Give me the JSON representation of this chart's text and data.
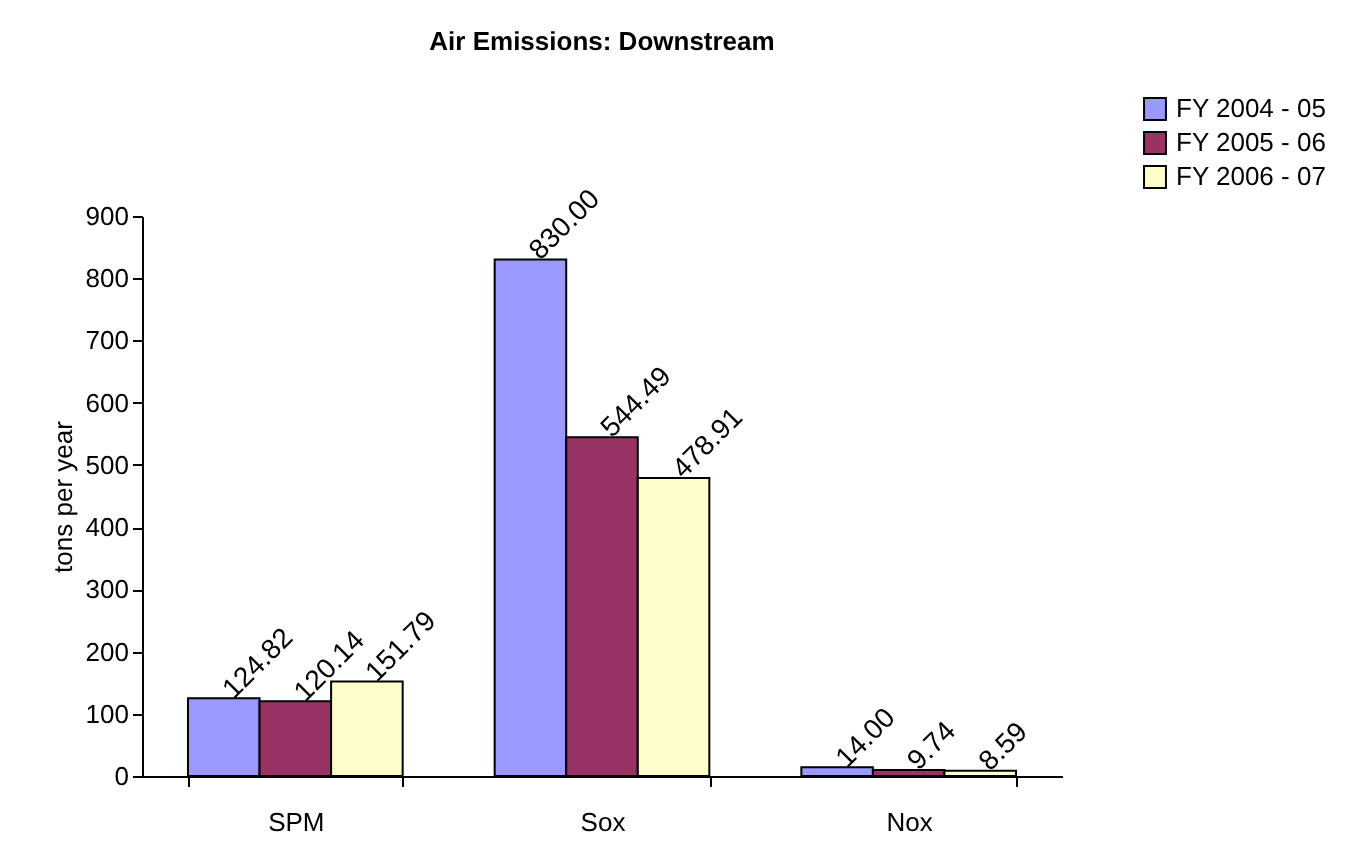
{
  "chart_data": {
    "type": "bar",
    "title": "Air Emissions: Downstream",
    "ylabel": "tons per year",
    "categories": [
      "SPM",
      "Sox",
      "Nox"
    ],
    "series": [
      {
        "name": "FY 2004 - 05",
        "color": "#9999ff",
        "values": [
          124.82,
          830.0,
          14.0
        ],
        "value_labels": [
          "124.82",
          "830.00",
          "14.00"
        ]
      },
      {
        "name": "FY 2005 - 06",
        "color": "#993366",
        "values": [
          120.14,
          544.49,
          9.74
        ],
        "value_labels": [
          "120.14",
          "544.49",
          "9.74"
        ]
      },
      {
        "name": "FY 2006 - 07",
        "color": "#ffffcc",
        "values": [
          151.79,
          478.91,
          8.59
        ],
        "value_labels": [
          "151.79",
          "478.91",
          "8.59"
        ]
      }
    ],
    "ylim": [
      0,
      900
    ],
    "yticks": [
      0,
      100,
      200,
      300,
      400,
      500,
      600,
      700,
      800,
      900
    ],
    "grid": false,
    "legend": "top right"
  }
}
